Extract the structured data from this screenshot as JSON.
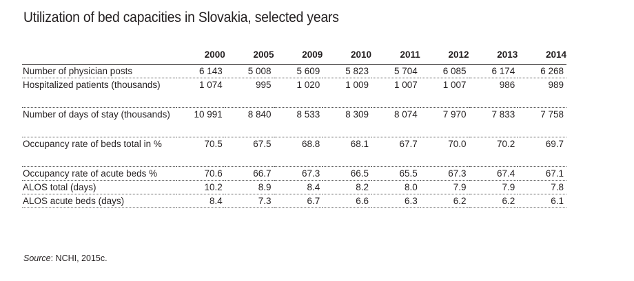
{
  "title": "Utilization of bed capacities in Slovakia, selected years",
  "table": {
    "columns": [
      "2000",
      "2005",
      "2009",
      "2010",
      "2011",
      "2012",
      "2013",
      "2014"
    ],
    "rows": [
      {
        "label": "Number of physician posts",
        "values": [
          "6 143",
          "5 008",
          "5 609",
          "5 823",
          "5 704",
          "6 085",
          "6 174",
          "6 268"
        ]
      },
      {
        "label": "Hospitalized patients (thousands)",
        "values": [
          "1 074",
          "995",
          "1 020",
          "1 009",
          "1 007",
          "1 007",
          "986",
          "989"
        ]
      },
      {
        "label": "Number of days of stay (thousands)",
        "values": [
          "10 991",
          "8 840",
          "8 533",
          "8 309",
          "8 074",
          "7 970",
          "7 833",
          "7 758"
        ]
      },
      {
        "label": "Occupancy rate of beds total in %",
        "values": [
          "70.5",
          "67.5",
          "68.8",
          "68.1",
          "67.7",
          "70.0",
          "70.2",
          "69.7"
        ]
      },
      {
        "label": "Occupancy rate of acute beds %",
        "values": [
          "70.6",
          "66.7",
          "67.3",
          "66.5",
          "65.5",
          "67.3",
          "67.4",
          "67.1"
        ]
      },
      {
        "label": "ALOS total (days)",
        "values": [
          "10.2",
          "8.9",
          "8.4",
          "8.2",
          "8.0",
          "7.9",
          "7.9",
          "7.8"
        ]
      },
      {
        "label": "ALOS acute beds (days)",
        "values": [
          "8.4",
          "7.3",
          "6.7",
          "6.6",
          "6.3",
          "6.2",
          "6.2",
          "6.1"
        ]
      }
    ]
  },
  "source": {
    "label": "Source",
    "text": ": NCHI, 2015c."
  }
}
